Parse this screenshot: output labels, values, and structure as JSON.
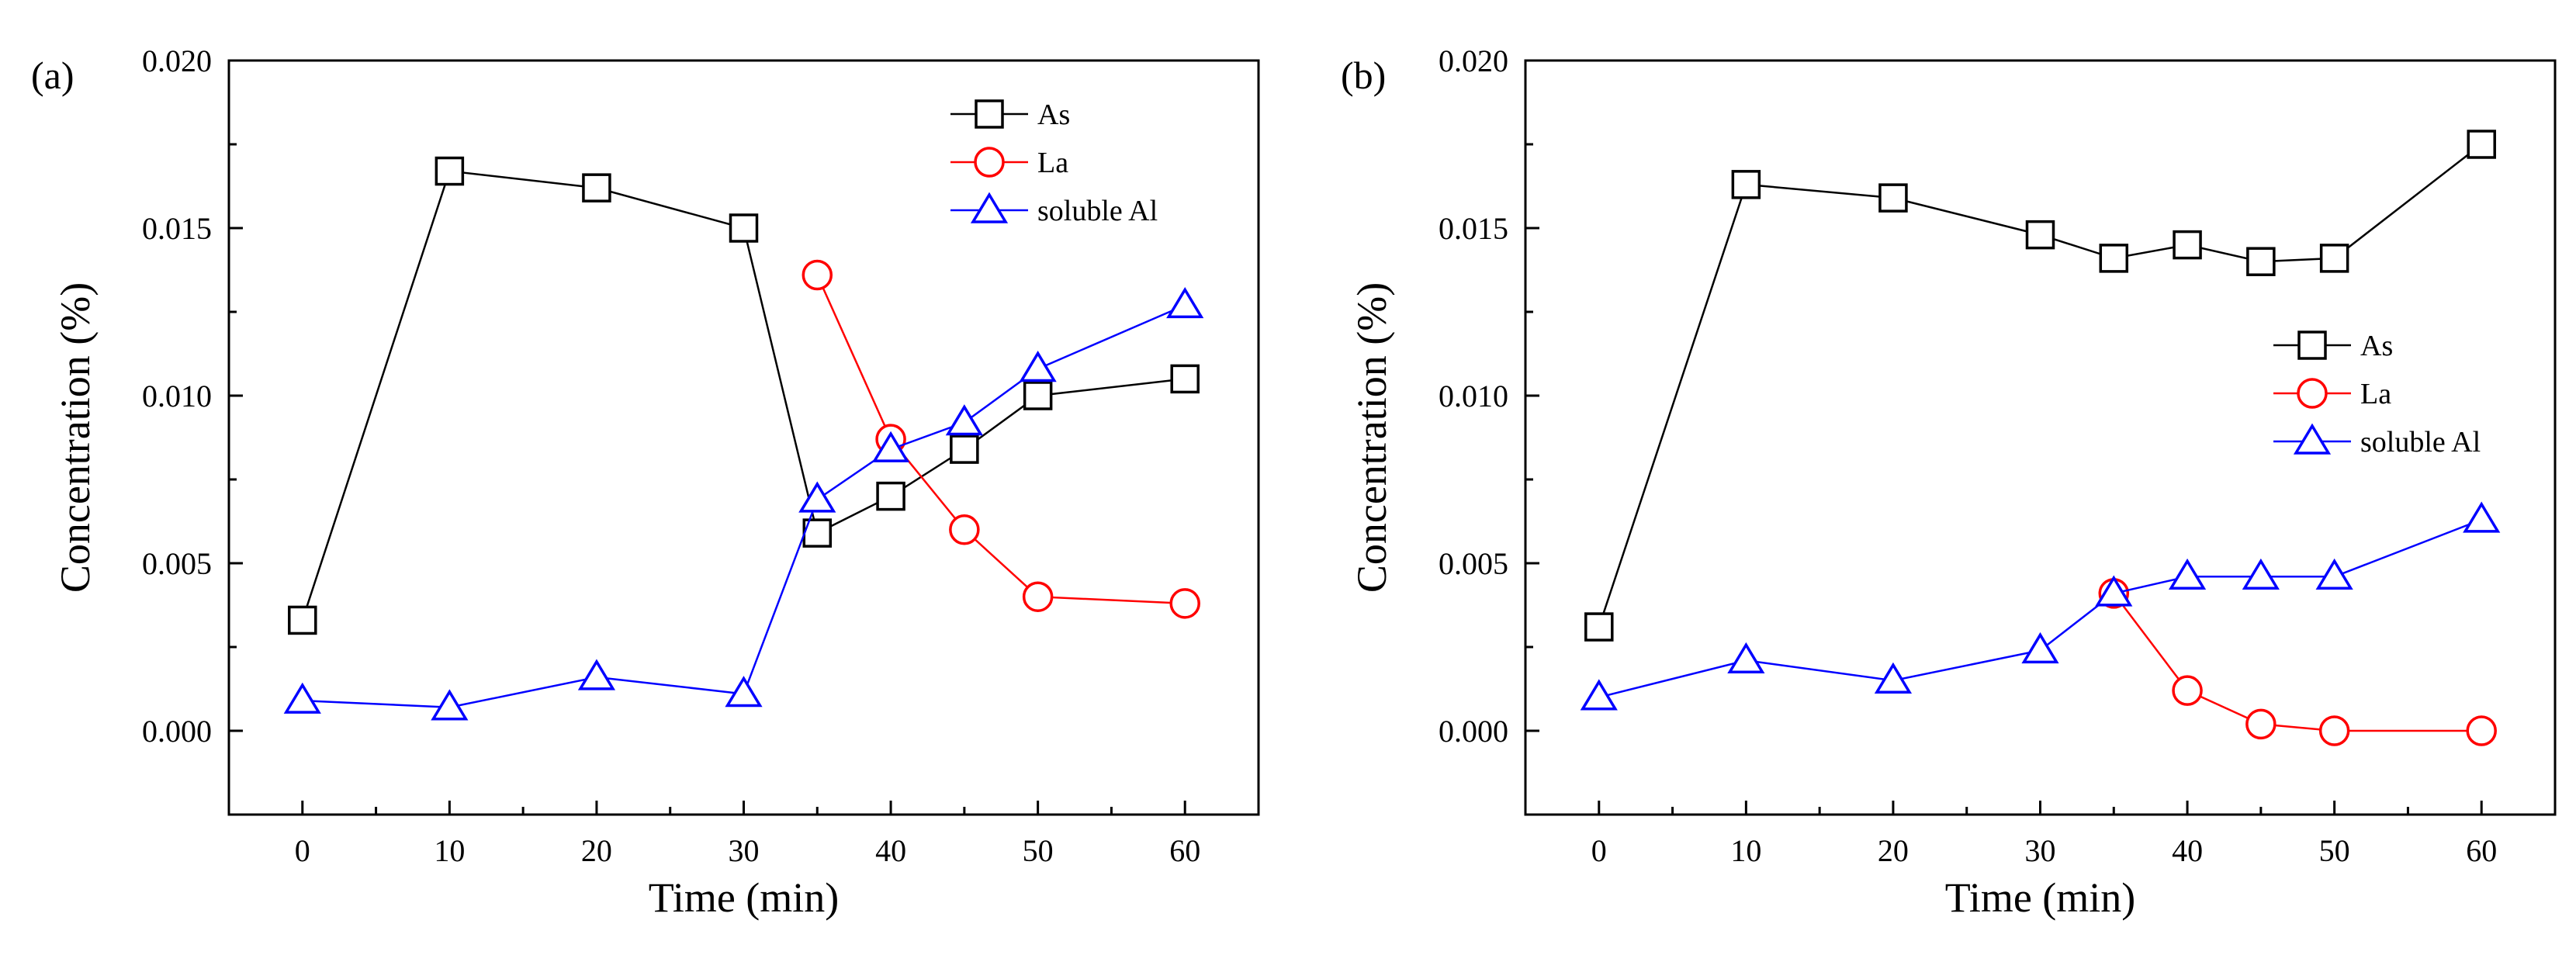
{
  "colors": {
    "As": "#000000",
    "La": "#ff0000",
    "soluble Al": "#0000ff"
  },
  "chart_data": [
    {
      "panel_label": "(a)",
      "type": "line",
      "xlabel": "Time (min)",
      "ylabel": "Concentration (%)",
      "xlim": [
        -5,
        65
      ],
      "ylim": [
        -0.0025,
        0.02
      ],
      "xticks": [
        "0",
        "10",
        "20",
        "30",
        "40",
        "50",
        "60"
      ],
      "yticks": [
        "0.000",
        "0.005",
        "0.010",
        "0.015",
        "0.020"
      ],
      "legend_position": "top-right",
      "series": [
        {
          "name": "As",
          "marker": "square",
          "x": [
            0,
            10,
            20,
            30,
            35,
            40,
            45,
            50,
            60
          ],
          "y": [
            0.0033,
            0.0167,
            0.0162,
            0.015,
            0.0059,
            0.007,
            0.0084,
            0.01,
            0.0105
          ]
        },
        {
          "name": "La",
          "marker": "circle",
          "x": [
            35,
            40,
            45,
            50,
            60
          ],
          "y": [
            0.0136,
            0.0087,
            0.006,
            0.004,
            0.0038
          ]
        },
        {
          "name": "soluble Al",
          "marker": "triangle",
          "x": [
            0,
            10,
            20,
            30,
            35,
            40,
            45,
            50,
            60
          ],
          "y": [
            0.0009,
            0.0007,
            0.0016,
            0.0011,
            0.0069,
            0.0084,
            0.0092,
            0.0108,
            0.0127
          ]
        }
      ]
    },
    {
      "panel_label": "(b)",
      "type": "line",
      "xlabel": "Time (min)",
      "ylabel": "Concentration (%)",
      "xlim": [
        -5,
        65
      ],
      "ylim": [
        -0.0025,
        0.02
      ],
      "xticks": [
        "0",
        "10",
        "20",
        "30",
        "40",
        "50",
        "60"
      ],
      "yticks": [
        "0.000",
        "0.005",
        "0.010",
        "0.015",
        "0.020"
      ],
      "legend_position": "right",
      "series": [
        {
          "name": "As",
          "marker": "square",
          "x": [
            0,
            10,
            20,
            30,
            35,
            40,
            45,
            50,
            60
          ],
          "y": [
            0.0031,
            0.0163,
            0.0159,
            0.0148,
            0.0141,
            0.0145,
            0.014,
            0.0141,
            0.0175
          ]
        },
        {
          "name": "La",
          "marker": "circle",
          "x": [
            35,
            40,
            45,
            50,
            60
          ],
          "y": [
            0.0041,
            0.0012,
            0.0002,
            0.0,
            0.0
          ]
        },
        {
          "name": "soluble Al",
          "marker": "triangle",
          "x": [
            0,
            10,
            20,
            30,
            35,
            40,
            45,
            50,
            60
          ],
          "y": [
            0.001,
            0.0021,
            0.0015,
            0.0024,
            0.0041,
            0.0046,
            0.0046,
            0.0046,
            0.0063
          ]
        }
      ]
    }
  ]
}
